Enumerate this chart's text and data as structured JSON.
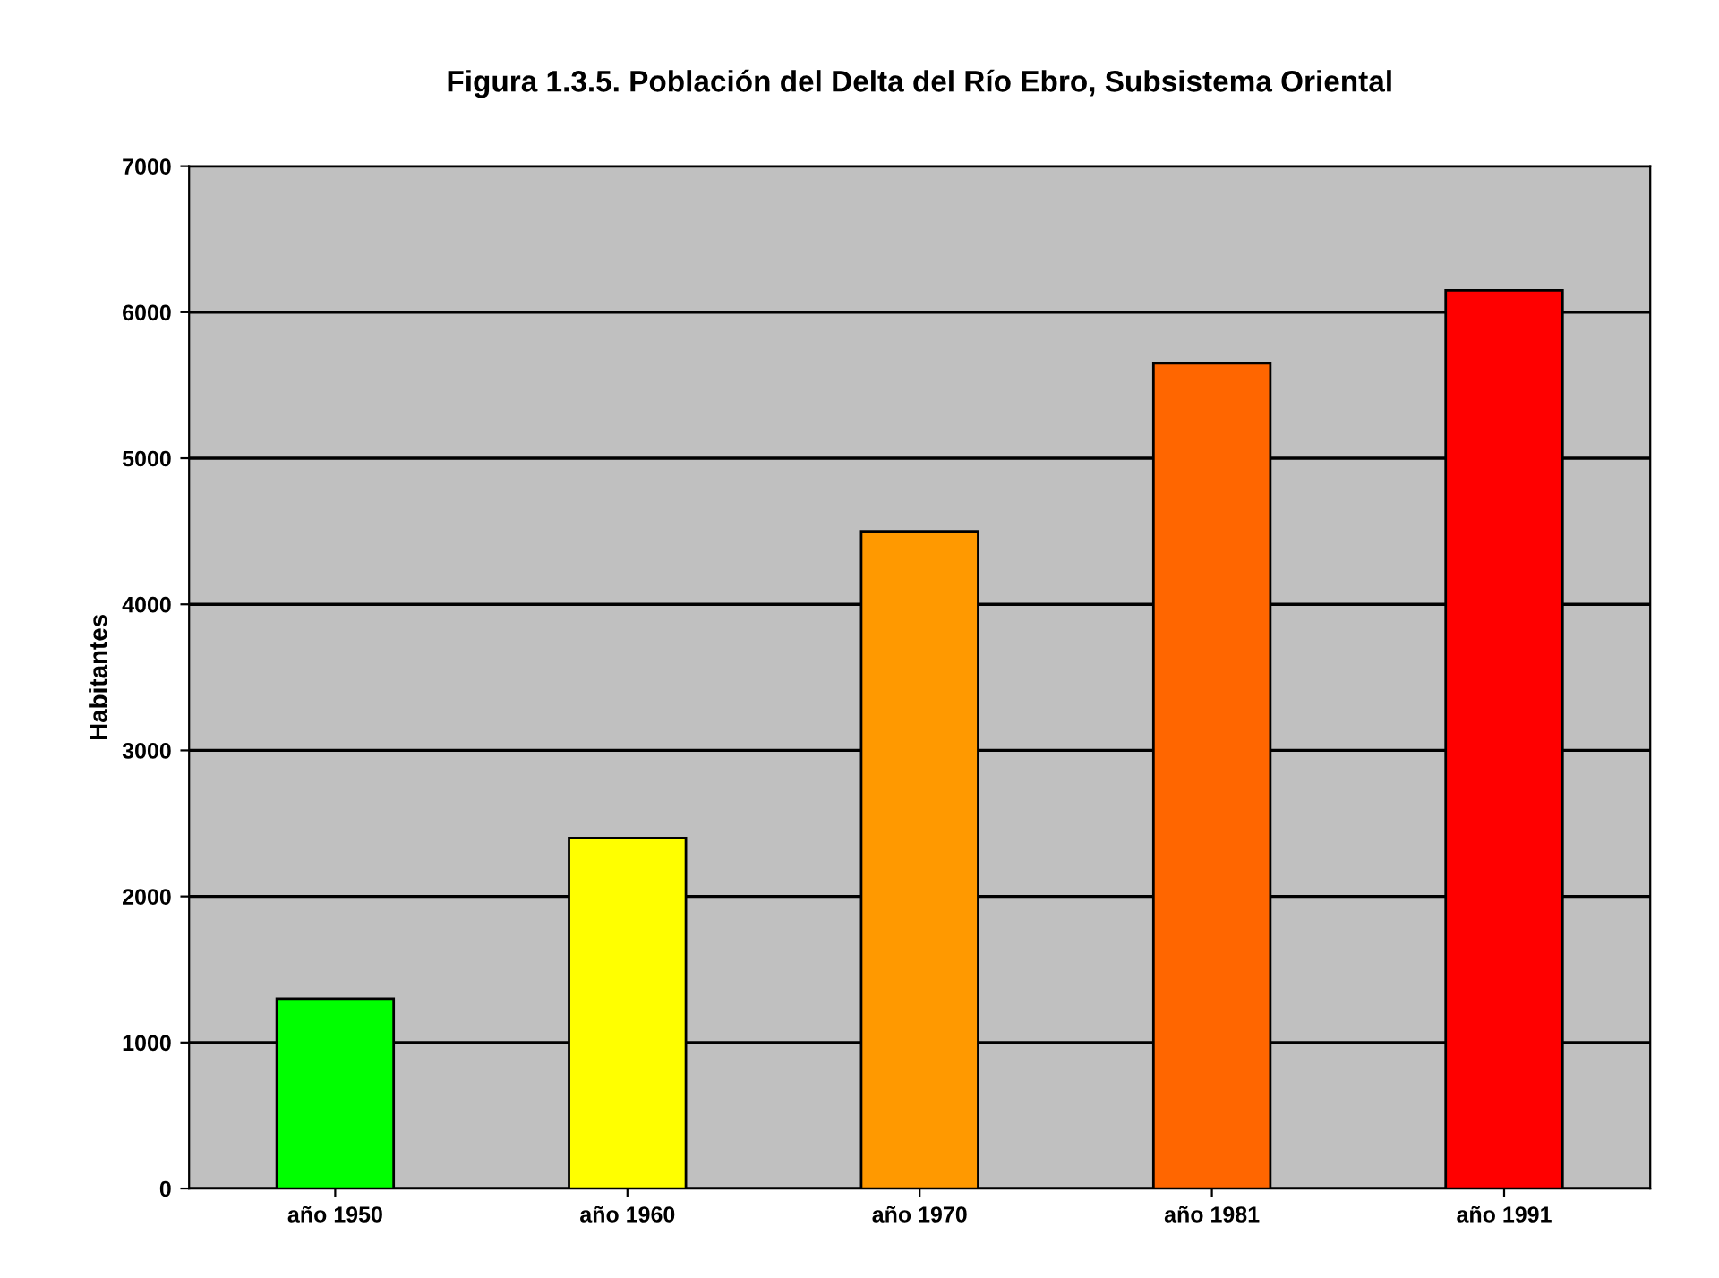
{
  "chart_data": {
    "type": "bar",
    "title": "Figura 1.3.5. Población del Delta del Río Ebro, Subsistema Oriental",
    "ylabel": "Habitantes",
    "categories": [
      "año 1950",
      "año 1960",
      "año 1970",
      "año 1981",
      "año 1991"
    ],
    "values": [
      1300,
      2400,
      4500,
      5650,
      6150
    ],
    "colors": [
      "#00ff00",
      "#ffff00",
      "#ff9900",
      "#ff6600",
      "#ff0000"
    ],
    "ylim": [
      0,
      7000
    ],
    "yticks": [
      0,
      1000,
      2000,
      3000,
      4000,
      5000,
      6000,
      7000
    ],
    "grid": "y",
    "legend": false
  }
}
